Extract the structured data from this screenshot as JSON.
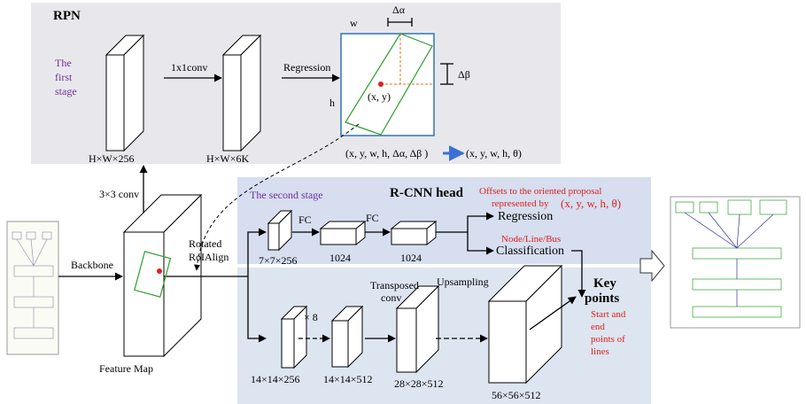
{
  "rpn": {
    "title": "RPN",
    "stage_label": [
      "The",
      "first",
      "stage"
    ],
    "conv": "1x1conv",
    "regression": "Regression",
    "dims": [
      "H×W×256",
      "H×W×6K"
    ],
    "box": {
      "w": "w",
      "h": "h",
      "d_alpha": "Δα",
      "d_beta": "Δβ",
      "center": "(x, y)"
    },
    "params": "(x, y, w, h, Δα, Δβ )",
    "output": "(x, y, w, h, θ)"
  },
  "backbone": {
    "label": "Backbone",
    "conv": "3×3 conv",
    "feature_map": "Feature Map",
    "roi_align": [
      "Rotated",
      "RoIAlign"
    ]
  },
  "rcnn": {
    "stage_label": "The second stage",
    "title": "R-CNN head",
    "offsets": [
      "Offsets to the oriented proposal",
      "represented by"
    ],
    "offsets_params": "(x, y, w, h, θ)",
    "fc": [
      "FC",
      "FC"
    ],
    "dims": [
      "7×7×256",
      "1024",
      "1024"
    ],
    "regression": "Regression",
    "classes": "Node/Line/Bus",
    "classification": "Classification"
  },
  "keypoint": {
    "repeat": "× 8",
    "transposed": [
      "Transposed",
      "conv"
    ],
    "upsampling": "Upsampling",
    "dims": [
      "14×14×256",
      "14×14×512",
      "28×28×512",
      "56×56×512"
    ],
    "title": [
      "Key",
      "points"
    ],
    "note": [
      "Start and",
      "end",
      "points of",
      "lines"
    ]
  }
}
